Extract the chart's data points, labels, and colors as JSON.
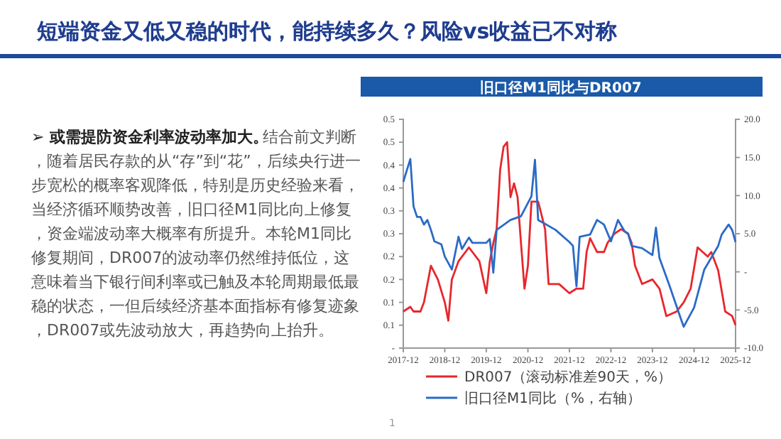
{
  "chart_data": {
    "type": "line",
    "title": "短端资金又低又稳的时代，能持续多久？风险vs收益已不对称",
    "subtitle": "旧口径M1同比与DR007",
    "annotations": [
      "➢ 或需提防资金利率波动率加大。",
      "结合前文判断，随着居民存款的从“存”到“花”，后续央行进一步宽松的概率客观降低，特别是历史经验来看，当经济循环顺势改善，旧口径M1同比向上修复，资金端波动率大概率有所提升。本轮M1同比修复期间，DR007的波动率仍然维持低位，这意味着当下银行间利率或已触及本轮周期最低最稳的状态，一但后续经济基本面指标有修复迹象，DR007或先波动放大，再趋势向上抬升。",
      "1"
    ],
    "xlim": [
      "2017-12",
      "2025-12"
    ],
    "xticks": [
      "2017-12",
      "2018-12",
      "2019-12",
      "2020-12",
      "2021-12",
      "2022-12",
      "2023-12",
      "2024-12",
      "2025-12"
    ],
    "ylim": [
      0,
      0.5
    ],
    "yticks": [
      {
        "value": 0,
        "label": "-"
      },
      {
        "value": 0.05,
        "label": "0.1"
      },
      {
        "value": 0.1,
        "label": "0.1"
      },
      {
        "value": 0.15,
        "label": "0.2"
      },
      {
        "value": 0.2,
        "label": "0.2"
      },
      {
        "value": 0.25,
        "label": "0.3"
      },
      {
        "value": 0.3,
        "label": "0.3"
      },
      {
        "value": 0.35,
        "label": "0.4"
      },
      {
        "value": 0.4,
        "label": "0.4"
      },
      {
        "value": 0.45,
        "label": "0.5"
      },
      {
        "value": 0.5,
        "label": "0.5"
      }
    ],
    "y2lim": [
      -10,
      20
    ],
    "y2ticks": [
      {
        "value": -10,
        "label": "-10.0"
      },
      {
        "value": -5,
        "label": "-5.0"
      },
      {
        "value": 0,
        "label": "-"
      },
      {
        "value": 5,
        "label": "5.0"
      },
      {
        "value": 10,
        "label": "10.0"
      },
      {
        "value": 15,
        "label": "15.0"
      },
      {
        "value": 20,
        "label": "20.0"
      }
    ],
    "grid": false,
    "legend": "bottom",
    "marker": "none",
    "line_style": "solid",
    "series": [
      {
        "name": "DR007（滚动标准差90天，%）",
        "color": "#e8262c",
        "x": [
          "2017-12",
          "2018-02",
          "2018-03",
          "2018-05",
          "2018-06",
          "2018-08",
          "2018-10",
          "2018-12",
          "2019-01",
          "2019-02",
          "2019-04",
          "2019-06",
          "2019-07",
          "2019-08",
          "2019-10",
          "2019-12",
          "2020-01",
          "2020-02",
          "2020-03",
          "2020-04",
          "2020-05",
          "2020-06",
          "2020-07",
          "2020-08",
          "2020-09",
          "2020-10",
          "2020-11",
          "2020-12",
          "2021-01",
          "2021-03",
          "2021-04",
          "2021-05",
          "2021-06",
          "2021-09",
          "2021-12",
          "2022-02",
          "2022-04",
          "2022-05",
          "2022-06",
          "2022-08",
          "2022-10",
          "2022-11",
          "2023-01",
          "2023-03",
          "2023-05",
          "2023-06",
          "2023-07",
          "2023-09",
          "2023-12",
          "2024-02",
          "2024-04",
          "2024-07",
          "2024-09",
          "2024-11",
          "2025-01",
          "2025-04",
          "2025-05",
          "2025-07",
          "2025-09",
          "2025-11",
          "2025-12"
        ],
        "values": [
          0.08,
          0.09,
          0.08,
          0.08,
          0.1,
          0.18,
          0.15,
          0.1,
          0.06,
          0.15,
          0.19,
          0.21,
          0.22,
          0.21,
          0.19,
          0.12,
          0.19,
          0.23,
          0.26,
          0.39,
          0.44,
          0.45,
          0.33,
          0.36,
          0.33,
          0.23,
          0.13,
          0.18,
          0.32,
          0.32,
          0.29,
          0.26,
          0.14,
          0.14,
          0.12,
          0.13,
          0.13,
          0.21,
          0.24,
          0.21,
          0.21,
          0.23,
          0.25,
          0.26,
          0.25,
          0.23,
          0.18,
          0.14,
          0.15,
          0.13,
          0.07,
          0.08,
          0.1,
          0.13,
          0.22,
          0.2,
          0.21,
          0.17,
          0.08,
          0.07,
          0.05
        ]
      },
      {
        "name": "旧口径M1同比（%，右轴）",
        "color": "#2a6bc6",
        "axis": "y2",
        "x": [
          "2017-12",
          "2018-02",
          "2018-03",
          "2018-04",
          "2018-05",
          "2018-06",
          "2018-07",
          "2018-08",
          "2018-09",
          "2018-11",
          "2018-12",
          "2019-02",
          "2019-04",
          "2019-05",
          "2019-07",
          "2019-08",
          "2019-12",
          "2020-01",
          "2020-02",
          "2020-03",
          "2020-07",
          "2020-10",
          "2021-01",
          "2021-02",
          "2021-03",
          "2021-08",
          "2021-12",
          "2022-01",
          "2022-02",
          "2022-03",
          "2022-06",
          "2022-08",
          "2022-10",
          "2022-12",
          "2023-02",
          "2023-04",
          "2023-05",
          "2023-06",
          "2023-09",
          "2023-12",
          "2024-01",
          "2024-02",
          "2024-05",
          "2024-08",
          "2024-09",
          "2024-12",
          "2025-03",
          "2025-07",
          "2025-08",
          "2025-10",
          "2025-11",
          "2025-12"
        ],
        "values": [
          11.8,
          14.8,
          8.6,
          7.2,
          7.2,
          6.2,
          6.8,
          5.5,
          4.0,
          3.6,
          2.0,
          0.3,
          4.6,
          3.0,
          4.5,
          3.8,
          3.8,
          4.3,
          -0.1,
          5.5,
          6.8,
          7.3,
          9.9,
          14.7,
          6.8,
          5.5,
          3.9,
          3.4,
          -1.9,
          4.6,
          4.9,
          6.8,
          6.2,
          4.0,
          6.8,
          5.3,
          5.0,
          3.4,
          3.1,
          2.2,
          5.8,
          1.8,
          -1.9,
          -5.9,
          -7.2,
          -4.7,
          0.3,
          3.4,
          4.9,
          6.2,
          5.5,
          3.9
        ]
      }
    ]
  }
}
